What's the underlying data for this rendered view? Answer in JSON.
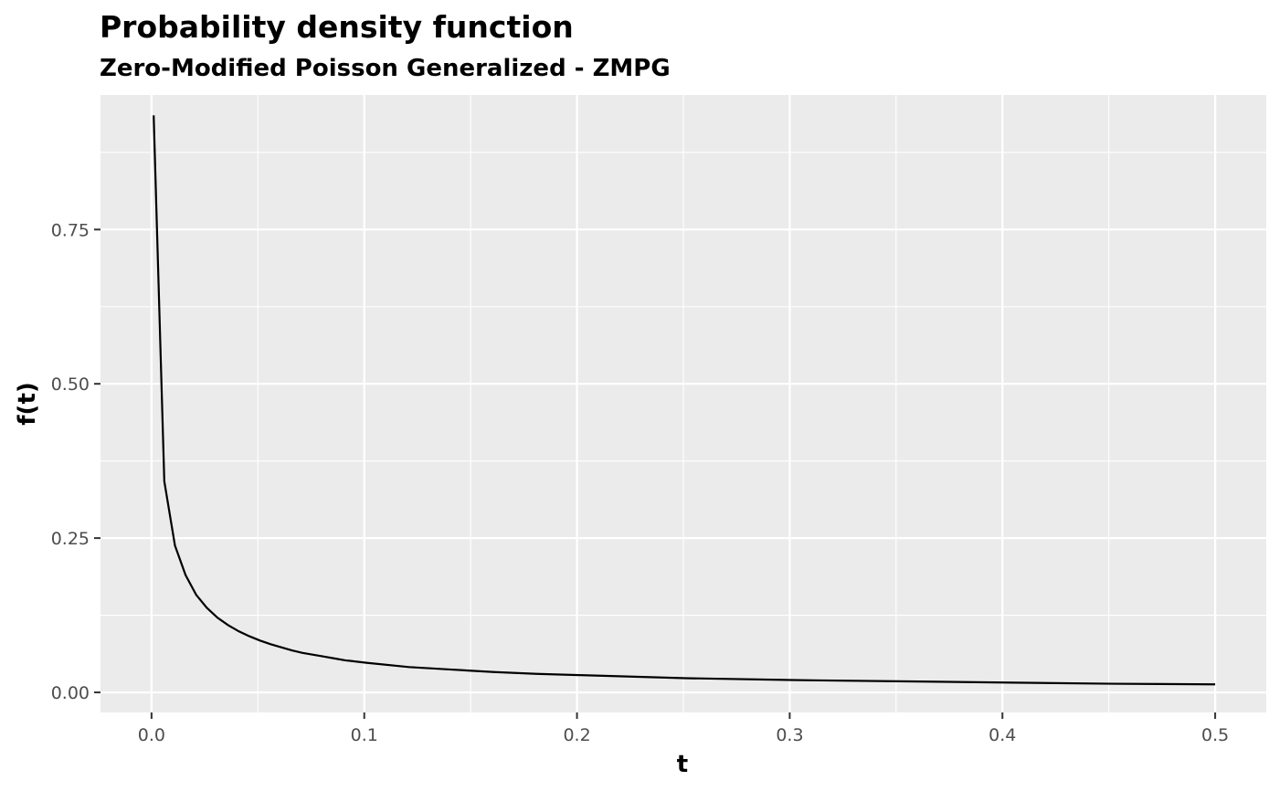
{
  "chart_data": {
    "type": "line",
    "title": "Probability density function",
    "subtitle": "Zero-Modified Poisson Generalized - ZMPG",
    "xlabel": "t",
    "ylabel": "f(t)",
    "xlim": [
      -0.024,
      0.524
    ],
    "ylim": [
      -0.0325,
      0.968
    ],
    "x_ticks": [
      0.0,
      0.1,
      0.2,
      0.3,
      0.4,
      0.5
    ],
    "x_tick_labels": [
      "0.0",
      "0.1",
      "0.2",
      "0.3",
      "0.4",
      "0.5"
    ],
    "y_ticks": [
      0.0,
      0.25,
      0.5,
      0.75
    ],
    "y_tick_labels": [
      "0.00",
      "0.25",
      "0.50",
      "0.75"
    ],
    "grid": true,
    "colors": {
      "panel": "#EBEBEB",
      "grid": "#FFFFFF",
      "line": "#000000",
      "tick_text": "#4D4D4D"
    },
    "series": [
      {
        "name": "f(t)",
        "x": [
          0.001,
          0.006,
          0.011,
          0.016,
          0.021,
          0.026,
          0.031,
          0.036,
          0.041,
          0.046,
          0.051,
          0.056,
          0.061,
          0.066,
          0.071,
          0.076,
          0.081,
          0.086,
          0.091,
          0.096,
          0.101,
          0.121,
          0.141,
          0.161,
          0.181,
          0.201,
          0.251,
          0.301,
          0.351,
          0.401,
          0.451,
          0.5
        ],
        "values": [
          0.935,
          0.342,
          0.238,
          0.19,
          0.158,
          0.137,
          0.121,
          0.109,
          0.099,
          0.091,
          0.084,
          0.078,
          0.073,
          0.068,
          0.064,
          0.061,
          0.058,
          0.055,
          0.052,
          0.05,
          0.048,
          0.041,
          0.037,
          0.033,
          0.03,
          0.028,
          0.023,
          0.02,
          0.018,
          0.016,
          0.014,
          0.013
        ]
      }
    ]
  }
}
